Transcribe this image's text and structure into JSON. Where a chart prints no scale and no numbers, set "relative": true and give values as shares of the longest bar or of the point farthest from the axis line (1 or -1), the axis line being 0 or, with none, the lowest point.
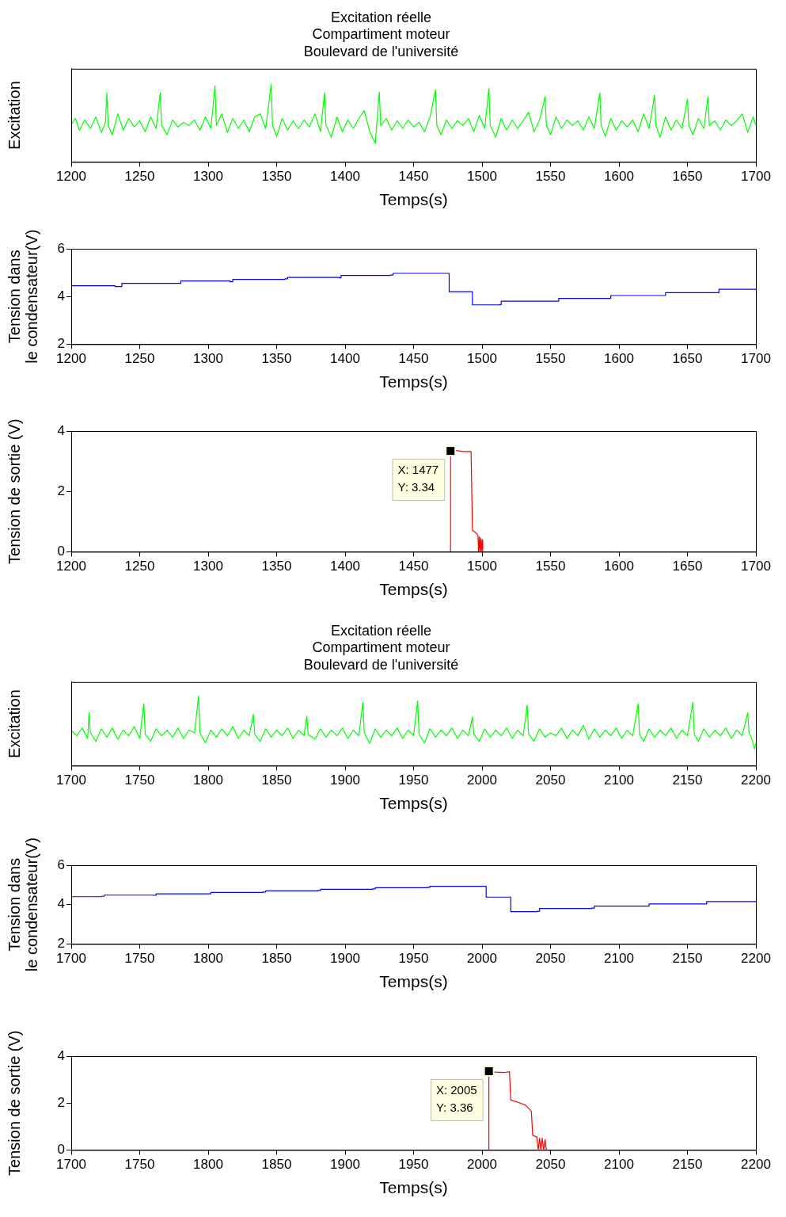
{
  "chart_data": [
    {
      "type": "line",
      "title": "Excitation réelle\nCompartiment moteur\nBoulevard de l'université",
      "xlabel": "Temps(s)",
      "ylabel": "Excitation",
      "relative": true,
      "xlim": [
        1200,
        1700
      ],
      "xticks": [
        1200,
        1250,
        1300,
        1350,
        1400,
        1450,
        1500,
        1550,
        1600,
        1650,
        1700
      ],
      "x": [
        1200,
        1203,
        1206,
        1210,
        1214,
        1218,
        1222,
        1225,
        1226,
        1227,
        1230,
        1234,
        1238,
        1242,
        1246,
        1250,
        1254,
        1258,
        1262,
        1265,
        1266,
        1270,
        1274,
        1278,
        1282,
        1286,
        1290,
        1294,
        1298,
        1302,
        1305,
        1306,
        1310,
        1314,
        1318,
        1322,
        1326,
        1330,
        1334,
        1338,
        1342,
        1346,
        1347,
        1350,
        1354,
        1358,
        1362,
        1366,
        1370,
        1374,
        1378,
        1382,
        1385,
        1386,
        1390,
        1394,
        1398,
        1402,
        1406,
        1410,
        1414,
        1418,
        1422,
        1425,
        1426,
        1430,
        1434,
        1438,
        1442,
        1446,
        1450,
        1454,
        1458,
        1462,
        1466,
        1467,
        1470,
        1474,
        1478,
        1482,
        1486,
        1490,
        1494,
        1498,
        1502,
        1505,
        1506,
        1510,
        1514,
        1518,
        1522,
        1526,
        1530,
        1534,
        1538,
        1542,
        1546,
        1547,
        1550,
        1554,
        1558,
        1562,
        1566,
        1570,
        1574,
        1578,
        1582,
        1586,
        1587,
        1590,
        1594,
        1598,
        1602,
        1606,
        1610,
        1614,
        1618,
        1622,
        1626,
        1627,
        1630,
        1634,
        1638,
        1642,
        1646,
        1650,
        1651,
        1654,
        1658,
        1662,
        1665,
        1666,
        1670,
        1674,
        1678,
        1682,
        1686,
        1690,
        1694,
        1698,
        1700
      ],
      "series": [
        {
          "color": "#00ff00",
          "values": [
            0.48,
            0.56,
            0.41,
            0.54,
            0.43,
            0.58,
            0.38,
            0.51,
            0.89,
            0.47,
            0.35,
            0.62,
            0.41,
            0.56,
            0.45,
            0.53,
            0.39,
            0.58,
            0.43,
            0.89,
            0.47,
            0.35,
            0.54,
            0.45,
            0.51,
            0.47,
            0.54,
            0.41,
            0.58,
            0.43,
            0.98,
            0.47,
            0.62,
            0.38,
            0.56,
            0.43,
            0.54,
            0.39,
            0.58,
            0.62,
            0.43,
            1.0,
            0.47,
            0.33,
            0.56,
            0.41,
            0.53,
            0.43,
            0.54,
            0.45,
            0.62,
            0.39,
            0.89,
            0.47,
            0.32,
            0.58,
            0.39,
            0.54,
            0.43,
            0.56,
            0.66,
            0.39,
            0.24,
            0.9,
            0.47,
            0.56,
            0.41,
            0.53,
            0.43,
            0.54,
            0.45,
            0.51,
            0.39,
            0.58,
            0.93,
            0.47,
            0.35,
            0.54,
            0.43,
            0.53,
            0.47,
            0.56,
            0.39,
            0.6,
            0.43,
            0.95,
            0.47,
            0.32,
            0.56,
            0.41,
            0.54,
            0.43,
            0.53,
            0.64,
            0.39,
            0.54,
            0.84,
            0.47,
            0.35,
            0.58,
            0.43,
            0.54,
            0.47,
            0.53,
            0.41,
            0.58,
            0.43,
            0.89,
            0.47,
            0.33,
            0.56,
            0.41,
            0.53,
            0.45,
            0.54,
            0.39,
            0.62,
            0.43,
            0.86,
            0.47,
            0.32,
            0.58,
            0.41,
            0.54,
            0.43,
            0.81,
            0.47,
            0.35,
            0.56,
            0.43,
            0.84,
            0.47,
            0.53,
            0.41,
            0.54,
            0.47,
            0.53,
            0.62,
            0.38,
            0.58,
            0.47
          ]
        }
      ]
    },
    {
      "type": "step",
      "xlabel": "Temps(s)",
      "ylabel": "Tension dans\nle condensateur(V)",
      "xlim": [
        1200,
        1700
      ],
      "xticks": [
        1200,
        1250,
        1300,
        1350,
        1400,
        1450,
        1500,
        1550,
        1600,
        1650,
        1700
      ],
      "ylim": [
        2,
        6
      ],
      "yticks": [
        2,
        4,
        6
      ],
      "x": [
        1200,
        1232,
        1237,
        1272,
        1280,
        1316,
        1318,
        1356,
        1358,
        1396,
        1397,
        1433,
        1435,
        1475,
        1476,
        1492,
        1493,
        1513,
        1514,
        1555,
        1556,
        1593,
        1594,
        1633,
        1634,
        1672,
        1673,
        1700
      ],
      "series": [
        {
          "color": "#0000ff",
          "values": [
            4.45,
            4.42,
            4.55,
            4.55,
            4.65,
            4.62,
            4.72,
            4.74,
            4.8,
            4.78,
            4.88,
            4.9,
            4.97,
            4.97,
            4.2,
            4.2,
            3.65,
            3.66,
            3.8,
            3.8,
            3.92,
            3.92,
            4.04,
            4.04,
            4.16,
            4.16,
            4.3,
            4.27
          ]
        }
      ]
    },
    {
      "type": "line",
      "xlabel": "Temps(s)",
      "ylabel": "Tension de sortie (V)",
      "xlim": [
        1200,
        1700
      ],
      "xticks": [
        1200,
        1250,
        1300,
        1350,
        1400,
        1450,
        1500,
        1550,
        1600,
        1650,
        1700
      ],
      "ylim": [
        0,
        4
      ],
      "yticks": [
        0,
        2,
        4
      ],
      "x": [
        1477,
        1477,
        1480,
        1486,
        1492,
        1493,
        1496,
        1497,
        1497.5,
        1498,
        1498.5,
        1499,
        1499.5,
        1500,
        1500.5
      ],
      "series": [
        {
          "color": "#ff0000",
          "values": [
            0,
            3.34,
            3.36,
            3.32,
            3.32,
            0.72,
            0.6,
            0.55,
            0,
            0.5,
            0,
            0.45,
            0,
            0.4,
            0
          ]
        }
      ],
      "annotations": [
        {
          "text": "X: 1477\nY: 3.34",
          "x": 1477,
          "y": 3.34
        }
      ]
    },
    {
      "type": "line",
      "title": "Excitation réelle\nCompartiment moteur\nBoulevard de l'université",
      "xlabel": "Temps(s)",
      "ylabel": "Excitation",
      "relative": true,
      "xlim": [
        1700,
        2200
      ],
      "xticks": [
        1700,
        1750,
        1800,
        1850,
        1900,
        1950,
        2000,
        2050,
        2100,
        2150,
        2200
      ],
      "x": [
        1700,
        1704,
        1708,
        1712,
        1713,
        1714,
        1718,
        1722,
        1726,
        1730,
        1734,
        1738,
        1742,
        1746,
        1750,
        1753,
        1754,
        1758,
        1762,
        1766,
        1770,
        1774,
        1778,
        1782,
        1786,
        1790,
        1793,
        1794,
        1798,
        1802,
        1806,
        1810,
        1814,
        1818,
        1822,
        1826,
        1830,
        1833,
        1834,
        1838,
        1842,
        1846,
        1850,
        1854,
        1858,
        1862,
        1866,
        1870,
        1872,
        1873,
        1878,
        1882,
        1886,
        1890,
        1894,
        1898,
        1902,
        1906,
        1910,
        1913,
        1914,
        1918,
        1922,
        1926,
        1930,
        1934,
        1938,
        1942,
        1946,
        1950,
        1953,
        1954,
        1958,
        1962,
        1966,
        1970,
        1974,
        1978,
        1982,
        1986,
        1990,
        1993,
        1994,
        1998,
        2002,
        2006,
        2010,
        2014,
        2018,
        2022,
        2026,
        2030,
        2033,
        2034,
        2038,
        2042,
        2046,
        2050,
        2054,
        2058,
        2062,
        2066,
        2070,
        2074,
        2078,
        2082,
        2086,
        2090,
        2094,
        2098,
        2102,
        2106,
        2110,
        2114,
        2115,
        2118,
        2122,
        2126,
        2130,
        2134,
        2138,
        2142,
        2146,
        2150,
        2154,
        2155,
        2158,
        2162,
        2166,
        2170,
        2174,
        2178,
        2182,
        2186,
        2190,
        2194,
        2195,
        2197,
        2199,
        2200
      ],
      "series": [
        {
          "color": "#00ff00",
          "values": [
            0.51,
            0.43,
            0.54,
            0.39,
            0.76,
            0.47,
            0.35,
            0.53,
            0.41,
            0.54,
            0.38,
            0.51,
            0.43,
            0.56,
            0.39,
            0.89,
            0.45,
            0.35,
            0.53,
            0.43,
            0.51,
            0.41,
            0.54,
            0.39,
            0.51,
            0.47,
            1.0,
            0.47,
            0.33,
            0.51,
            0.41,
            0.53,
            0.43,
            0.56,
            0.39,
            0.51,
            0.43,
            0.74,
            0.45,
            0.35,
            0.53,
            0.41,
            0.51,
            0.43,
            0.54,
            0.39,
            0.51,
            0.43,
            0.71,
            0.45,
            0.38,
            0.53,
            0.41,
            0.51,
            0.43,
            0.54,
            0.39,
            0.51,
            0.43,
            0.91,
            0.47,
            0.32,
            0.53,
            0.41,
            0.51,
            0.43,
            0.54,
            0.39,
            0.51,
            0.43,
            0.93,
            0.45,
            0.33,
            0.53,
            0.41,
            0.51,
            0.43,
            0.54,
            0.39,
            0.51,
            0.43,
            0.7,
            0.45,
            0.35,
            0.53,
            0.41,
            0.51,
            0.43,
            0.54,
            0.39,
            0.51,
            0.43,
            0.87,
            0.45,
            0.35,
            0.53,
            0.41,
            0.47,
            0.43,
            0.54,
            0.39,
            0.51,
            0.43,
            0.58,
            0.38,
            0.53,
            0.41,
            0.51,
            0.43,
            0.54,
            0.39,
            0.51,
            0.43,
            0.89,
            0.45,
            0.35,
            0.53,
            0.41,
            0.51,
            0.43,
            0.54,
            0.39,
            0.51,
            0.43,
            0.91,
            0.45,
            0.35,
            0.53,
            0.41,
            0.51,
            0.43,
            0.54,
            0.39,
            0.51,
            0.43,
            0.76,
            0.47,
            0.39,
            0.24,
            0.32
          ]
        }
      ]
    },
    {
      "type": "step",
      "xlabel": "Temps(s)",
      "ylabel": "Tension dans\nle condensateur(V)",
      "xlim": [
        1700,
        2200
      ],
      "xticks": [
        1700,
        1750,
        1800,
        1850,
        1900,
        1950,
        2000,
        2050,
        2100,
        2150,
        2200
      ],
      "ylim": [
        2,
        6
      ],
      "yticks": [
        2,
        4,
        6
      ],
      "x": [
        1700,
        1722,
        1724,
        1760,
        1762,
        1800,
        1802,
        1840,
        1842,
        1880,
        1882,
        1920,
        1922,
        1960,
        1962,
        2002,
        2003,
        2020,
        2021,
        2040,
        2042,
        2080,
        2082,
        2120,
        2122,
        2162,
        2164,
        2200
      ],
      "series": [
        {
          "color": "#0000ff",
          "values": [
            4.4,
            4.42,
            4.48,
            4.47,
            4.55,
            4.55,
            4.62,
            4.64,
            4.7,
            4.72,
            4.78,
            4.8,
            4.86,
            4.88,
            4.93,
            4.93,
            4.38,
            4.38,
            3.64,
            3.66,
            3.8,
            3.82,
            3.92,
            3.92,
            4.03,
            4.03,
            4.15,
            4.12
          ]
        }
      ]
    },
    {
      "type": "line",
      "xlabel": "Temps(s)",
      "ylabel": "Tension de sortie (V)",
      "xlim": [
        1700,
        2200
      ],
      "xticks": [
        1700,
        1750,
        1800,
        1850,
        1900,
        1950,
        2000,
        2050,
        2100,
        2150,
        2200
      ],
      "ylim": [
        0,
        4
      ],
      "yticks": [
        0,
        2,
        4
      ],
      "x": [
        2005,
        2005,
        2010,
        2016,
        2020,
        2021,
        2028,
        2032,
        2036,
        2037,
        2040,
        2041,
        2042,
        2043,
        2044,
        2045,
        2046,
        2047
      ],
      "series": [
        {
          "color": "#ff0000",
          "values": [
            0,
            3.36,
            3.32,
            3.3,
            3.34,
            2.13,
            2.0,
            1.9,
            1.65,
            0.62,
            0.55,
            0,
            0.5,
            0,
            0.5,
            0,
            0.45,
            0
          ]
        }
      ],
      "annotations": [
        {
          "text": "X: 2005\nY: 3.36",
          "x": 2005,
          "y": 3.36
        }
      ]
    }
  ]
}
